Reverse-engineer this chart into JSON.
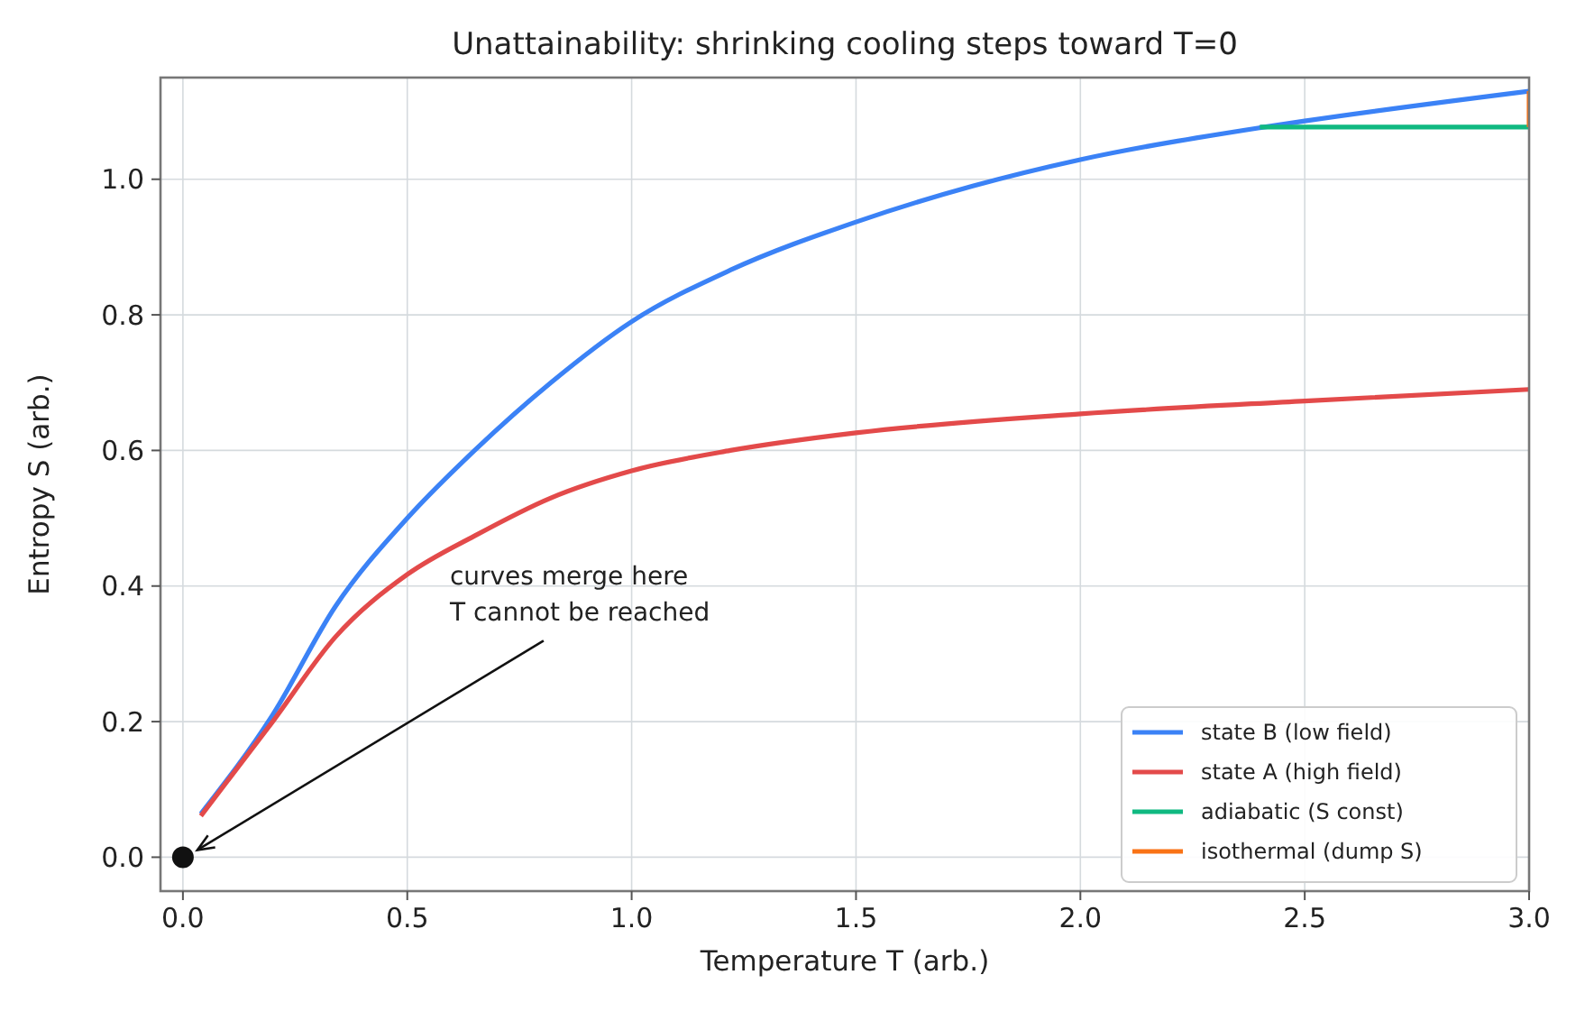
{
  "chart_data": {
    "type": "line",
    "title": "Unattainability: shrinking cooling steps toward T=0",
    "xlabel": "Temperature  T  (arb.)",
    "ylabel": "Entropy  S  (arb.)",
    "xlim": [
      -0.05,
      3.0
    ],
    "ylim": [
      -0.05,
      1.15
    ],
    "xticks": [
      {
        "value": 0,
        "label": "0.0"
      },
      {
        "value": 0.5,
        "label": "0.5"
      },
      {
        "value": 1,
        "label": "1.0"
      },
      {
        "value": 1.5,
        "label": "1.5"
      },
      {
        "value": 2,
        "label": "2.0"
      },
      {
        "value": 2.5,
        "label": "2.5"
      },
      {
        "value": 3,
        "label": "3.0"
      }
    ],
    "yticks": [
      {
        "value": 0,
        "label": "0.0"
      },
      {
        "value": 0.2,
        "label": "0.2"
      },
      {
        "value": 0.4,
        "label": "0.4"
      },
      {
        "value": 0.6,
        "label": "0.6"
      },
      {
        "value": 0.8,
        "label": "0.8"
      },
      {
        "value": 1,
        "label": "1.0"
      }
    ],
    "grid": true,
    "legend": "bottom right",
    "line_style": "solid",
    "series": [
      {
        "name": "state B (low field)",
        "color": "#3b82f6",
        "x": [
          0.04,
          0.2,
          0.34,
          0.5,
          0.65,
          0.82,
          1.0,
          1.22,
          1.5,
          1.76,
          2.0,
          2.4,
          2.5,
          3.0
        ],
        "values": [
          0.064,
          0.21,
          0.37,
          0.5,
          0.6,
          0.7,
          0.79,
          0.866,
          0.937,
          0.99,
          1.029,
          1.076,
          1.086,
          1.13
        ]
      },
      {
        "name": "state A (high field)",
        "color": "#e34a4a",
        "x": [
          0.04,
          0.2,
          0.34,
          0.5,
          0.65,
          0.82,
          1.0,
          1.22,
          1.5,
          2.0,
          2.5,
          3.0
        ],
        "values": [
          0.061,
          0.2,
          0.325,
          0.417,
          0.474,
          0.53,
          0.57,
          0.6,
          0.626,
          0.654,
          0.673,
          0.69
        ]
      },
      {
        "name": "adiabatic (S const)",
        "color": "#10b981",
        "x": [
          2.4,
          3.0
        ],
        "values": [
          1.077,
          1.077
        ]
      },
      {
        "name": "isothermal (dump S)",
        "color": "#f97316",
        "x": [
          3.0,
          3.0
        ],
        "values": [
          1.077,
          1.13
        ]
      },
      {
        "type": "scatter",
        "marker": "circle",
        "color": "#111111",
        "x": [
          0
        ],
        "values": [
          0
        ]
      }
    ],
    "annotations": [
      {
        "text": "curves merge here\nT cannot be reached",
        "x": 0,
        "y": 0
      }
    ]
  }
}
